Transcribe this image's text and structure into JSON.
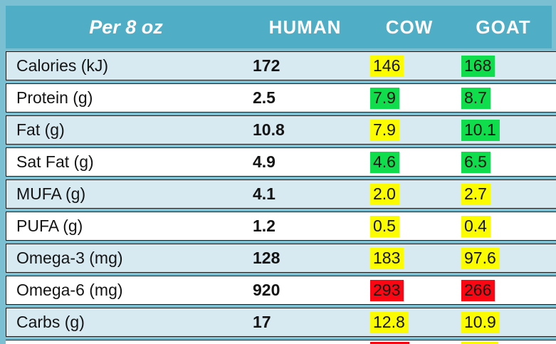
{
  "colors": {
    "frame_teal": "#7bbfd3",
    "header_bg": "#4fadc6",
    "row_alt_bg": "#d8eaf1",
    "row_white_bg": "#ffffff",
    "border_dark": "#1a1a1a",
    "highlight_yellow": "#fbfb02",
    "highlight_green": "#10dd4b",
    "highlight_red": "#fa0713",
    "header_text": "#ffffff",
    "body_text": "#141414"
  },
  "header": {
    "row_label": "Per 8 oz",
    "columns": [
      "HUMAN",
      "COW",
      "GOAT"
    ]
  },
  "chart_data": {
    "type": "table",
    "title": "Per 8 oz",
    "columns": [
      "Per 8 oz",
      "HUMAN",
      "COW",
      "GOAT"
    ],
    "legend_note": "COW/GOAT cells are highlighted green, yellow or red relative to human milk",
    "rows": [
      {
        "label": "Calories (kJ)",
        "human": "172",
        "cow": "146",
        "cow_flag": "yellow",
        "goat": "168",
        "goat_flag": "green"
      },
      {
        "label": "Protein (g)",
        "human": "2.5",
        "cow": "7.9",
        "cow_flag": "green",
        "goat": "8.7",
        "goat_flag": "green"
      },
      {
        "label": "Fat (g)",
        "human": "10.8",
        "cow": "7.9",
        "cow_flag": "yellow",
        "goat": "10.1",
        "goat_flag": "green"
      },
      {
        "label": "Sat Fat (g)",
        "human": "4.9",
        "cow": "4.6",
        "cow_flag": "green",
        "goat": "6.5",
        "goat_flag": "green"
      },
      {
        "label": "MUFA (g)",
        "human": "4.1",
        "cow": "2.0",
        "cow_flag": "yellow",
        "goat": "2.7",
        "goat_flag": "yellow"
      },
      {
        "label": "PUFA (g)",
        "human": "1.2",
        "cow": "0.5",
        "cow_flag": "yellow",
        "goat": "0.4",
        "goat_flag": "yellow"
      },
      {
        "label": "Omega-3 (mg)",
        "human": "128",
        "cow": "183",
        "cow_flag": "yellow",
        "goat": "97.6",
        "goat_flag": "yellow"
      },
      {
        "label": "Omega-6 (mg)",
        "human": "920",
        "cow": "293",
        "cow_flag": "red",
        "goat": "266",
        "goat_flag": "red"
      },
      {
        "label": "Carbs (g)",
        "human": "17",
        "cow": "12.8",
        "cow_flag": "yellow",
        "goat": "10.9",
        "goat_flag": "yellow"
      }
    ],
    "partial_bottom_row": {
      "note": "next row cut off at image bottom edge",
      "cow_flag": "red",
      "goat_flag": "yellow"
    }
  }
}
